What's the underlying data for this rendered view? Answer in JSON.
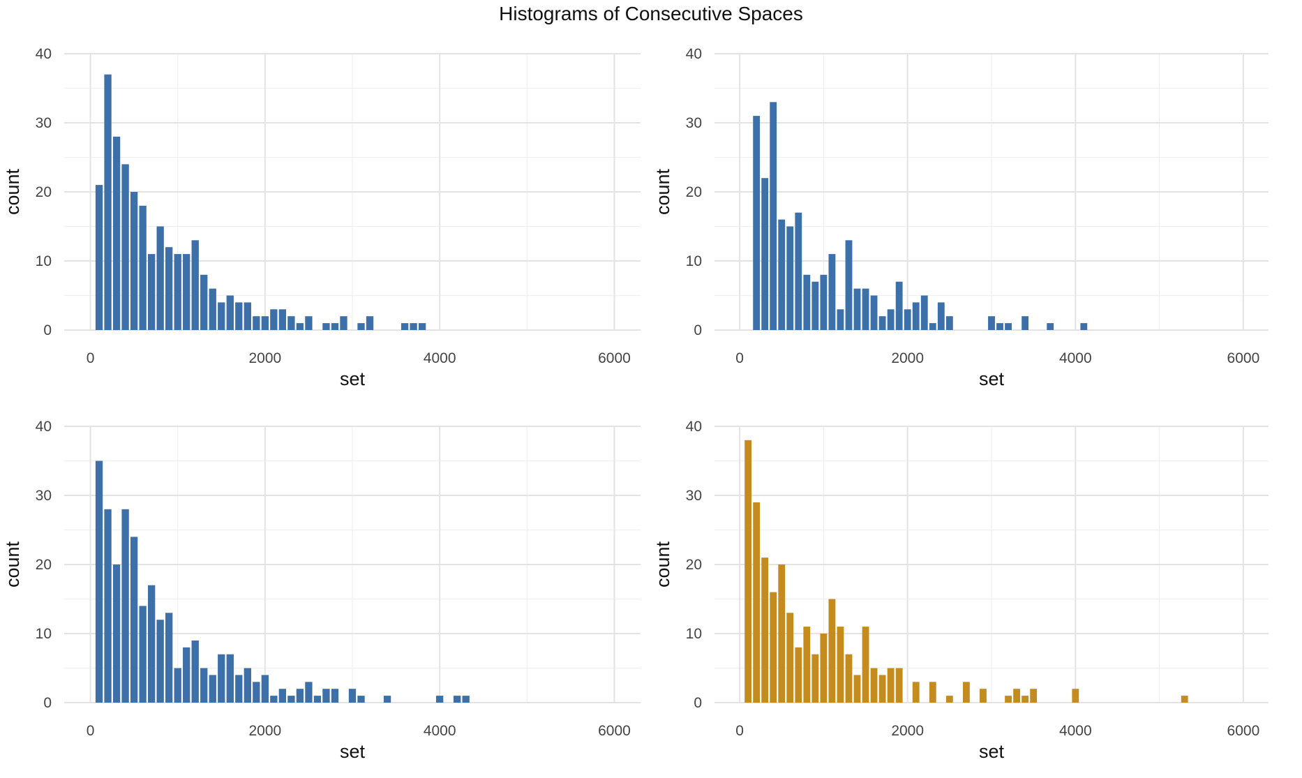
{
  "title": "Histograms of Consecutive Spaces",
  "colors": {
    "blue": "#3d6fa8",
    "gold": "#c48b1f",
    "grid_major": "#e3e3e3",
    "grid_minor": "#f0f0f0",
    "tick_text": "#444444",
    "axis_title": "#111111"
  },
  "chart_data": [
    {
      "type": "bar",
      "position": "top-left",
      "color": "#3d6fa8",
      "xlabel": "set",
      "ylabel": "count",
      "xlim": [
        -300,
        6300
      ],
      "ylim": [
        0,
        40
      ],
      "xticks": [
        "0",
        "2000",
        "4000",
        "6000"
      ],
      "yticks": [
        "0",
        "10",
        "20",
        "30",
        "40"
      ],
      "binwidth": 100,
      "x": [
        100,
        200,
        300,
        400,
        500,
        600,
        700,
        800,
        900,
        1000,
        1100,
        1200,
        1300,
        1400,
        1500,
        1600,
        1700,
        1800,
        1900,
        2000,
        2100,
        2200,
        2300,
        2400,
        2500,
        2700,
        2800,
        2900,
        3100,
        3200,
        3600,
        3700,
        3800
      ],
      "values": [
        21,
        37,
        28,
        24,
        20,
        18,
        11,
        15,
        12,
        11,
        11,
        13,
        8,
        6,
        4,
        5,
        4,
        4,
        2,
        2,
        3,
        3,
        2,
        1,
        2,
        1,
        1,
        2,
        1,
        2,
        1,
        1,
        1
      ]
    },
    {
      "type": "bar",
      "position": "top-right",
      "color": "#3d6fa8",
      "xlabel": "set",
      "ylabel": "count",
      "xlim": [
        -300,
        6300
      ],
      "ylim": [
        0,
        40
      ],
      "xticks": [
        "0",
        "2000",
        "4000",
        "6000"
      ],
      "yticks": [
        "0",
        "10",
        "20",
        "30",
        "40"
      ],
      "binwidth": 100,
      "x": [
        200,
        300,
        400,
        500,
        600,
        700,
        800,
        900,
        1000,
        1100,
        1200,
        1300,
        1400,
        1500,
        1600,
        1700,
        1800,
        1900,
        2000,
        2100,
        2200,
        2300,
        2400,
        2500,
        3000,
        3100,
        3200,
        3400,
        3700,
        4100
      ],
      "values": [
        31,
        22,
        33,
        16,
        15,
        17,
        8,
        7,
        8,
        11,
        3,
        13,
        6,
        6,
        5,
        2,
        3,
        7,
        3,
        4,
        5,
        1,
        4,
        2,
        2,
        1,
        1,
        2,
        1,
        1
      ]
    },
    {
      "type": "bar",
      "position": "bottom-left",
      "color": "#3d6fa8",
      "xlabel": "set",
      "ylabel": "count",
      "xlim": [
        -300,
        6300
      ],
      "ylim": [
        0,
        40
      ],
      "xticks": [
        "0",
        "2000",
        "4000",
        "6000"
      ],
      "yticks": [
        "0",
        "10",
        "20",
        "30",
        "40"
      ],
      "binwidth": 100,
      "x": [
        100,
        200,
        300,
        400,
        500,
        600,
        700,
        800,
        900,
        1000,
        1100,
        1200,
        1300,
        1400,
        1500,
        1600,
        1700,
        1800,
        1900,
        2000,
        2100,
        2200,
        2300,
        2400,
        2500,
        2600,
        2700,
        2800,
        3000,
        3100,
        3400,
        4000,
        4200,
        4300
      ],
      "values": [
        35,
        28,
        20,
        28,
        24,
        14,
        17,
        12,
        13,
        5,
        8,
        9,
        5,
        4,
        7,
        7,
        4,
        5,
        3,
        4,
        1,
        2,
        1,
        2,
        3,
        1,
        2,
        2,
        2,
        1,
        1,
        1,
        1,
        1
      ]
    },
    {
      "type": "bar",
      "position": "bottom-right",
      "color": "#c48b1f",
      "xlabel": "set",
      "ylabel": "count",
      "xlim": [
        -300,
        6300
      ],
      "ylim": [
        0,
        40
      ],
      "xticks": [
        "0",
        "2000",
        "4000",
        "6000"
      ],
      "yticks": [
        "0",
        "10",
        "20",
        "30",
        "40"
      ],
      "binwidth": 100,
      "x": [
        100,
        200,
        300,
        400,
        500,
        600,
        700,
        800,
        900,
        1000,
        1100,
        1200,
        1300,
        1400,
        1500,
        1600,
        1700,
        1800,
        1900,
        2100,
        2300,
        2500,
        2700,
        2900,
        3200,
        3300,
        3400,
        3500,
        4000,
        5300
      ],
      "values": [
        38,
        29,
        21,
        16,
        20,
        13,
        8,
        11,
        7,
        10,
        15,
        11,
        7,
        4,
        11,
        5,
        4,
        5,
        5,
        3,
        3,
        1,
        3,
        2,
        1,
        2,
        1,
        2,
        2,
        1
      ]
    }
  ]
}
